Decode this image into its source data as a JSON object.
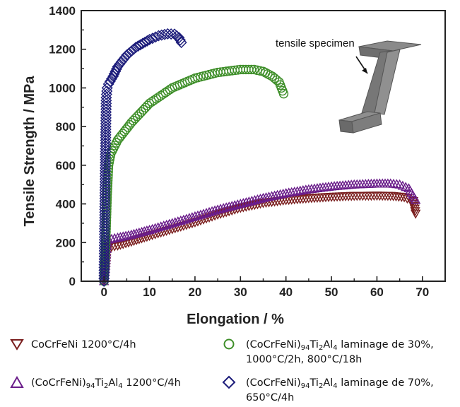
{
  "chart_data": {
    "type": "scatter",
    "title": "",
    "xlabel": "Elongation / %",
    "ylabel": "Tensile Strength / MPa",
    "xlim": [
      -5,
      75
    ],
    "ylim": [
      0,
      1400
    ],
    "xticks": [
      0,
      10,
      20,
      30,
      40,
      50,
      60,
      70
    ],
    "yticks": [
      0,
      200,
      400,
      600,
      800,
      1000,
      1200,
      1400
    ],
    "grid": false,
    "legend_position": "bottom",
    "annotation": "tensile specimen",
    "series": [
      {
        "key": "cocrfeni",
        "label_main": "CoCrFeNi 1200°C/4h",
        "marker": "triangle-down",
        "color": "#7a1e1e",
        "points": [
          [
            0,
            0
          ],
          [
            0.3,
            60
          ],
          [
            0.5,
            120
          ],
          [
            0.7,
            170
          ],
          [
            1,
            175
          ],
          [
            3,
            185
          ],
          [
            6,
            205
          ],
          [
            10,
            235
          ],
          [
            15,
            270
          ],
          [
            20,
            305
          ],
          [
            25,
            345
          ],
          [
            30,
            380
          ],
          [
            35,
            405
          ],
          [
            40,
            420
          ],
          [
            45,
            430
          ],
          [
            50,
            437
          ],
          [
            55,
            442
          ],
          [
            60,
            443
          ],
          [
            63,
            442
          ],
          [
            66,
            435
          ],
          [
            68,
            415
          ],
          [
            68.5,
            350
          ]
        ]
      },
      {
        "key": "ti_al_1200",
        "label_main": "(CoCrFeNi)94Ti2Al4 1200°C/4h",
        "marker": "triangle-up",
        "color": "#6a1d8a",
        "points": [
          [
            0,
            0
          ],
          [
            0.3,
            80
          ],
          [
            0.5,
            150
          ],
          [
            0.7,
            200
          ],
          [
            1,
            215
          ],
          [
            3,
            225
          ],
          [
            6,
            240
          ],
          [
            10,
            265
          ],
          [
            15,
            300
          ],
          [
            20,
            335
          ],
          [
            25,
            370
          ],
          [
            30,
            400
          ],
          [
            35,
            430
          ],
          [
            40,
            455
          ],
          [
            45,
            475
          ],
          [
            50,
            490
          ],
          [
            55,
            500
          ],
          [
            60,
            505
          ],
          [
            63,
            505
          ],
          [
            65,
            500
          ],
          [
            67,
            480
          ],
          [
            68.5,
            420
          ]
        ]
      },
      {
        "key": "lam30",
        "label_main": "(CoCrFeNi)94Ti2Al4 laminage de 30%,",
        "label_line2": "1000°C/2h, 800°C/18h",
        "marker": "circle",
        "color": "#3f8f2a",
        "points": [
          [
            0,
            0
          ],
          [
            0.3,
            150
          ],
          [
            0.5,
            300
          ],
          [
            0.7,
            450
          ],
          [
            0.9,
            550
          ],
          [
            1,
            600
          ],
          [
            1.5,
            660
          ],
          [
            3,
            730
          ],
          [
            6,
            820
          ],
          [
            10,
            920
          ],
          [
            15,
            1000
          ],
          [
            20,
            1050
          ],
          [
            25,
            1080
          ],
          [
            30,
            1095
          ],
          [
            33,
            1095
          ],
          [
            35,
            1085
          ],
          [
            37,
            1060
          ],
          [
            38.5,
            1030
          ],
          [
            39.5,
            970
          ]
        ]
      },
      {
        "key": "lam70",
        "label_main": "(CoCrFeNi)94Ti2Al4 laminage de 70%,",
        "label_line2": "650°C/4h",
        "marker": "diamond",
        "color": "#1c1c7a",
        "points": [
          [
            0,
            0
          ],
          [
            0.1,
            200
          ],
          [
            0.2,
            400
          ],
          [
            0.3,
            600
          ],
          [
            0.4,
            800
          ],
          [
            0.5,
            950
          ],
          [
            0.7,
            1000
          ],
          [
            1,
            1020
          ],
          [
            2,
            1060
          ],
          [
            3,
            1110
          ],
          [
            5,
            1170
          ],
          [
            7,
            1210
          ],
          [
            10,
            1250
          ],
          [
            12,
            1270
          ],
          [
            14,
            1280
          ],
          [
            15.5,
            1278
          ],
          [
            16.5,
            1260
          ],
          [
            17,
            1235
          ]
        ]
      }
    ]
  },
  "legend": [
    {
      "key": "cocrfeni",
      "text_main": "CoCrFeNi 1200°C/4h"
    },
    {
      "key": "ti_al_1200",
      "text_a": "(CoCrFeNi)",
      "sub1": "94",
      "text_b": "Ti",
      "sub2": "2",
      "text_c": "Al",
      "sub3": "4",
      "text_d": " 1200°C/4h"
    },
    {
      "key": "lam30",
      "text_a": "(CoCrFeNi)",
      "sub1": "94",
      "text_b": "Ti",
      "sub2": "2",
      "text_c": "Al",
      "sub3": "4",
      "text_d": " laminage de 30%,",
      "line2": "1000°C/2h, 800°C/18h"
    },
    {
      "key": "lam70",
      "text_a": "(CoCrFeNi)",
      "sub1": "94",
      "text_b": "Ti",
      "sub2": "2",
      "text_c": "Al",
      "sub3": "4",
      "text_d": " laminage de 70%,",
      "line2": "650°C/4h"
    }
  ]
}
